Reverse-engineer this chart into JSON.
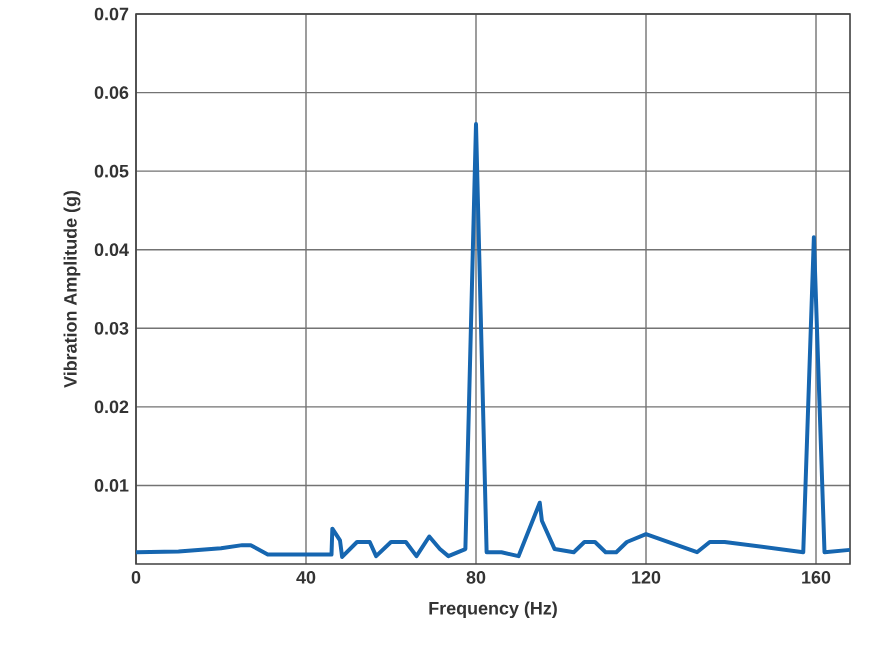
{
  "chart_data": {
    "type": "line",
    "xlabel": "Frequency (Hz)",
    "ylabel": "Vibration Amplitude (g)",
    "x": [
      0,
      10,
      20,
      25,
      27,
      31,
      46,
      46.2,
      48,
      48.5,
      52,
      55,
      56.5,
      60,
      63.5,
      66,
      69,
      71.5,
      73.5,
      77.5,
      80,
      82.5,
      86,
      90,
      95,
      95.5,
      98.5,
      103,
      105.5,
      108,
      110.5,
      113,
      115.5,
      120,
      132,
      135,
      138.5,
      157,
      159.5,
      162,
      168
    ],
    "series": [
      {
        "color": "#1666b0",
        "values": [
          0.0015,
          0.0016,
          0.002,
          0.0024,
          0.0024,
          0.0012,
          0.0012,
          0.0045,
          0.003,
          0.0009,
          0.0028,
          0.0028,
          0.001,
          0.0028,
          0.0028,
          0.001,
          0.0035,
          0.0019,
          0.001,
          0.0019,
          0.056,
          0.0015,
          0.0015,
          0.001,
          0.0078,
          0.0055,
          0.0019,
          0.0015,
          0.0028,
          0.0028,
          0.0015,
          0.0015,
          0.0028,
          0.0038,
          0.0015,
          0.0028,
          0.0028,
          0.0015,
          0.0416,
          0.0015,
          0.0018
        ]
      }
    ],
    "xlim": [
      0,
      168
    ],
    "ylim": [
      0,
      0.07
    ],
    "xticks": [
      0,
      40,
      80,
      120,
      160
    ],
    "yticks": [
      0.01,
      0.02,
      0.03,
      0.04,
      0.05,
      0.06,
      0.07
    ],
    "grid": true,
    "marker": "none",
    "line_style": "solid"
  }
}
